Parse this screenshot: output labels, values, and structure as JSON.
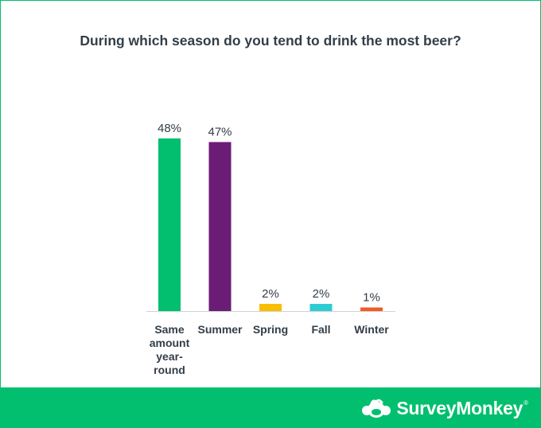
{
  "chart_data": {
    "type": "bar",
    "title": "During which season do you tend to drink the most beer?",
    "categories": [
      [
        "Same",
        "amount",
        "year-",
        "round"
      ],
      [
        "Summer"
      ],
      [
        "Spring"
      ],
      [
        "Fall"
      ],
      [
        "Winter"
      ]
    ],
    "values": [
      48,
      47,
      2,
      2,
      1
    ],
    "value_labels": [
      "48%",
      "47%",
      "2%",
      "2%",
      "1%"
    ],
    "colors": [
      "#01bf6e",
      "#6b1c75",
      "#f9be00",
      "#2dccd3",
      "#f05b24"
    ],
    "xlabel": "",
    "ylabel": "",
    "ylim": [
      0,
      50
    ],
    "grid": false,
    "legend": "none"
  },
  "footer": {
    "brand_name": "SurveyMonkey",
    "brand_mark": "®",
    "logo_icon": "surveymonkey-logo-icon",
    "background": "#01bf6e"
  }
}
